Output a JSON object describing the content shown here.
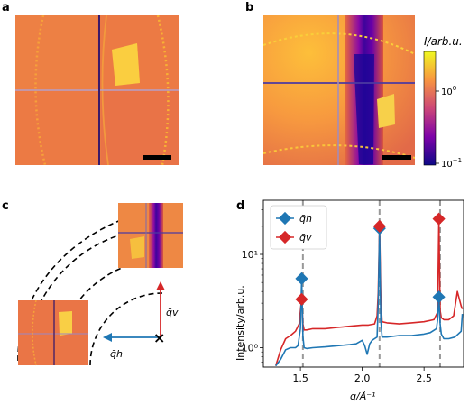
{
  "panel_labels": {
    "a": "a",
    "b": "b",
    "c": "c",
    "d": "d"
  },
  "colorbar": {
    "label": "I/arb.u.",
    "ticks": [
      "10",
      "10"
    ],
    "tick_exponents": [
      "0",
      "−1"
    ],
    "colormap": "plasma"
  },
  "panel_c": {
    "qh_label": "q̄h",
    "qv_label": "q̄v",
    "qh_color": "#1f77b4",
    "qv_color": "#d62728"
  },
  "chart_data": {
    "type": "line",
    "xlabel": "q/Å⁻¹",
    "ylabel": "Intensity/arb.u.",
    "yscale": "log",
    "xlim": [
      1.2,
      2.82
    ],
    "ylim": [
      0.62,
      38
    ],
    "xticks": [
      "1.5",
      "2.0",
      "2.5"
    ],
    "yticks": [
      "10⁰",
      "10¹"
    ],
    "legend": {
      "placement": "top-left",
      "entries": [
        "q̄h",
        "q̄v"
      ]
    },
    "vertical_dashed_lines": [
      1.52,
      2.14,
      2.63
    ],
    "series": [
      {
        "name": "q̄h",
        "color": "#1f77b4",
        "x": [
          1.3,
          1.34,
          1.38,
          1.42,
          1.46,
          1.48,
          1.5,
          1.51,
          1.52,
          1.53,
          1.55,
          1.6,
          1.7,
          1.8,
          1.9,
          1.95,
          2.0,
          2.02,
          2.04,
          2.06,
          2.08,
          2.1,
          2.12,
          2.13,
          2.14,
          2.15,
          2.16,
          2.2,
          2.3,
          2.4,
          2.5,
          2.55,
          2.6,
          2.61,
          2.62,
          2.63,
          2.64,
          2.66,
          2.7,
          2.75,
          2.8,
          2.81
        ],
        "y": [
          0.64,
          0.75,
          0.95,
          1.0,
          1.0,
          1.05,
          1.6,
          5.5,
          1.3,
          1.0,
          0.98,
          1.0,
          1.02,
          1.05,
          1.08,
          1.1,
          1.2,
          1.05,
          0.85,
          1.1,
          1.2,
          1.25,
          1.3,
          3.0,
          19.0,
          2.0,
          1.3,
          1.3,
          1.35,
          1.35,
          1.4,
          1.45,
          1.6,
          2.0,
          3.5,
          1.8,
          1.4,
          1.25,
          1.25,
          1.3,
          1.5,
          2.3
        ]
      },
      {
        "name": "q̄v",
        "color": "#d62728",
        "x": [
          1.3,
          1.34,
          1.38,
          1.42,
          1.46,
          1.49,
          1.5,
          1.51,
          1.52,
          1.53,
          1.55,
          1.6,
          1.7,
          1.8,
          1.9,
          2.0,
          2.05,
          2.1,
          2.12,
          2.13,
          2.14,
          2.15,
          2.16,
          2.2,
          2.3,
          2.4,
          2.5,
          2.58,
          2.61,
          2.62,
          2.63,
          2.64,
          2.66,
          2.7,
          2.74,
          2.77,
          2.8,
          2.81
        ],
        "y": [
          0.64,
          0.95,
          1.25,
          1.35,
          1.5,
          1.8,
          2.5,
          3.3,
          1.8,
          1.55,
          1.55,
          1.6,
          1.6,
          1.65,
          1.7,
          1.75,
          1.75,
          1.8,
          2.2,
          4.0,
          20.0,
          3.5,
          1.9,
          1.85,
          1.8,
          1.85,
          1.9,
          2.0,
          2.4,
          24.0,
          2.5,
          2.1,
          2.0,
          2.0,
          2.2,
          4.0,
          2.8,
          2.6
        ]
      }
    ],
    "markers": [
      {
        "series": "q̄h",
        "points": [
          [
            1.51,
            5.5
          ],
          [
            2.14,
            19.0
          ],
          [
            2.62,
            3.5
          ]
        ]
      },
      {
        "series": "q̄v",
        "points": [
          [
            1.51,
            3.3
          ],
          [
            2.14,
            20.0
          ],
          [
            2.62,
            24.0
          ]
        ]
      }
    ]
  }
}
